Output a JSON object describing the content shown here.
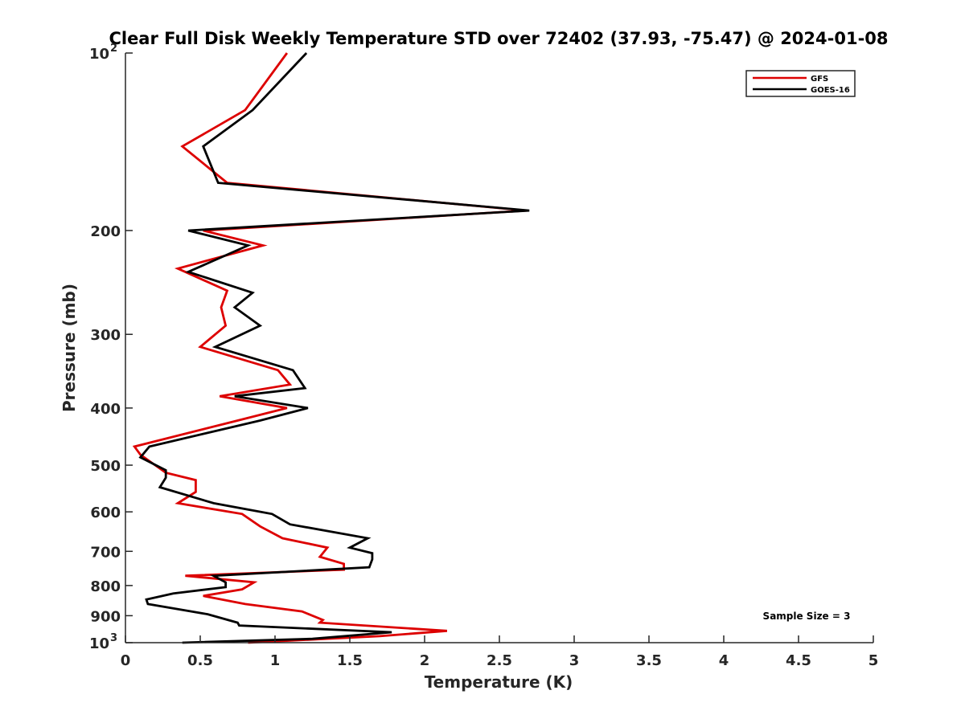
{
  "chart_data": {
    "type": "line",
    "title": "Clear Full Disk Weekly Temperature STD over 72402 (37.93, -75.47) @ 2024-01-08",
    "xlabel": "Temperature (K)",
    "ylabel": "Pressure (mb)",
    "xlim": [
      0,
      5
    ],
    "ylim": [
      100,
      1000
    ],
    "y_scale": "log",
    "y_reversed": true,
    "x_ticks": [
      "0",
      "0.5",
      "1",
      "1.5",
      "2",
      "2.5",
      "3",
      "3.5",
      "4",
      "4.5",
      "5"
    ],
    "y_ticks": [
      {
        "value": 200,
        "label": "200"
      },
      {
        "value": 300,
        "label": "300"
      },
      {
        "value": 400,
        "label": "400"
      },
      {
        "value": 500,
        "label": "500"
      },
      {
        "value": 600,
        "label": "600"
      },
      {
        "value": 700,
        "label": "700"
      },
      {
        "value": 800,
        "label": "800"
      },
      {
        "value": 900,
        "label": "900"
      }
    ],
    "y_tick_100": {
      "base": "10",
      "exp": "2"
    },
    "y_tick_1000": {
      "base": "10",
      "exp": "3"
    },
    "legend_position": "top-right",
    "grid": false,
    "annotation": "Sample Size = 3",
    "series": [
      {
        "name": "GFS",
        "color": "#dd0000",
        "points": [
          [
            1.08,
            100
          ],
          [
            0.8,
            125
          ],
          [
            0.38,
            144
          ],
          [
            0.68,
            166
          ],
          [
            2.68,
            185
          ],
          [
            0.52,
            200
          ],
          [
            0.92,
            212
          ],
          [
            0.35,
            232
          ],
          [
            0.68,
            253
          ],
          [
            0.64,
            270
          ],
          [
            0.67,
            290
          ],
          [
            0.5,
            315
          ],
          [
            1.02,
            345
          ],
          [
            1.1,
            365
          ],
          [
            0.63,
            382
          ],
          [
            1.08,
            400
          ],
          [
            0.75,
            420
          ],
          [
            0.06,
            465
          ],
          [
            0.1,
            480
          ],
          [
            0.27,
            515
          ],
          [
            0.47,
            530
          ],
          [
            0.47,
            555
          ],
          [
            0.35,
            580
          ],
          [
            0.78,
            605
          ],
          [
            0.9,
            635
          ],
          [
            1.05,
            665
          ],
          [
            1.35,
            690
          ],
          [
            1.3,
            715
          ],
          [
            1.46,
            735
          ],
          [
            1.46,
            752
          ],
          [
            0.4,
            770
          ],
          [
            0.86,
            790
          ],
          [
            0.78,
            812
          ],
          [
            0.52,
            833
          ],
          [
            0.8,
            860
          ],
          [
            1.18,
            885
          ],
          [
            1.32,
            915
          ],
          [
            1.3,
            925
          ],
          [
            2.15,
            955
          ],
          [
            1.7,
            975
          ],
          [
            0.82,
            1000
          ]
        ]
      },
      {
        "name": "GOES-16",
        "color": "#000000",
        "points": [
          [
            1.21,
            100
          ],
          [
            0.85,
            125
          ],
          [
            0.52,
            144
          ],
          [
            0.62,
            166
          ],
          [
            2.7,
            185
          ],
          [
            0.42,
            200
          ],
          [
            0.82,
            212
          ],
          [
            0.42,
            235
          ],
          [
            0.85,
            255
          ],
          [
            0.73,
            270
          ],
          [
            0.9,
            290
          ],
          [
            0.6,
            315
          ],
          [
            1.12,
            345
          ],
          [
            1.2,
            370
          ],
          [
            0.73,
            382
          ],
          [
            1.22,
            400
          ],
          [
            0.9,
            420
          ],
          [
            0.16,
            465
          ],
          [
            0.1,
            485
          ],
          [
            0.27,
            510
          ],
          [
            0.27,
            525
          ],
          [
            0.23,
            545
          ],
          [
            0.59,
            580
          ],
          [
            0.98,
            605
          ],
          [
            1.1,
            630
          ],
          [
            1.62,
            665
          ],
          [
            1.5,
            690
          ],
          [
            1.65,
            705
          ],
          [
            1.65,
            722
          ],
          [
            1.63,
            745
          ],
          [
            0.59,
            770
          ],
          [
            0.67,
            790
          ],
          [
            0.67,
            805
          ],
          [
            0.32,
            825
          ],
          [
            0.14,
            845
          ],
          [
            0.15,
            860
          ],
          [
            0.55,
            895
          ],
          [
            0.75,
            925
          ],
          [
            0.76,
            935
          ],
          [
            1.78,
            960
          ],
          [
            1.25,
            985
          ],
          [
            0.38,
            1000
          ]
        ]
      }
    ]
  }
}
